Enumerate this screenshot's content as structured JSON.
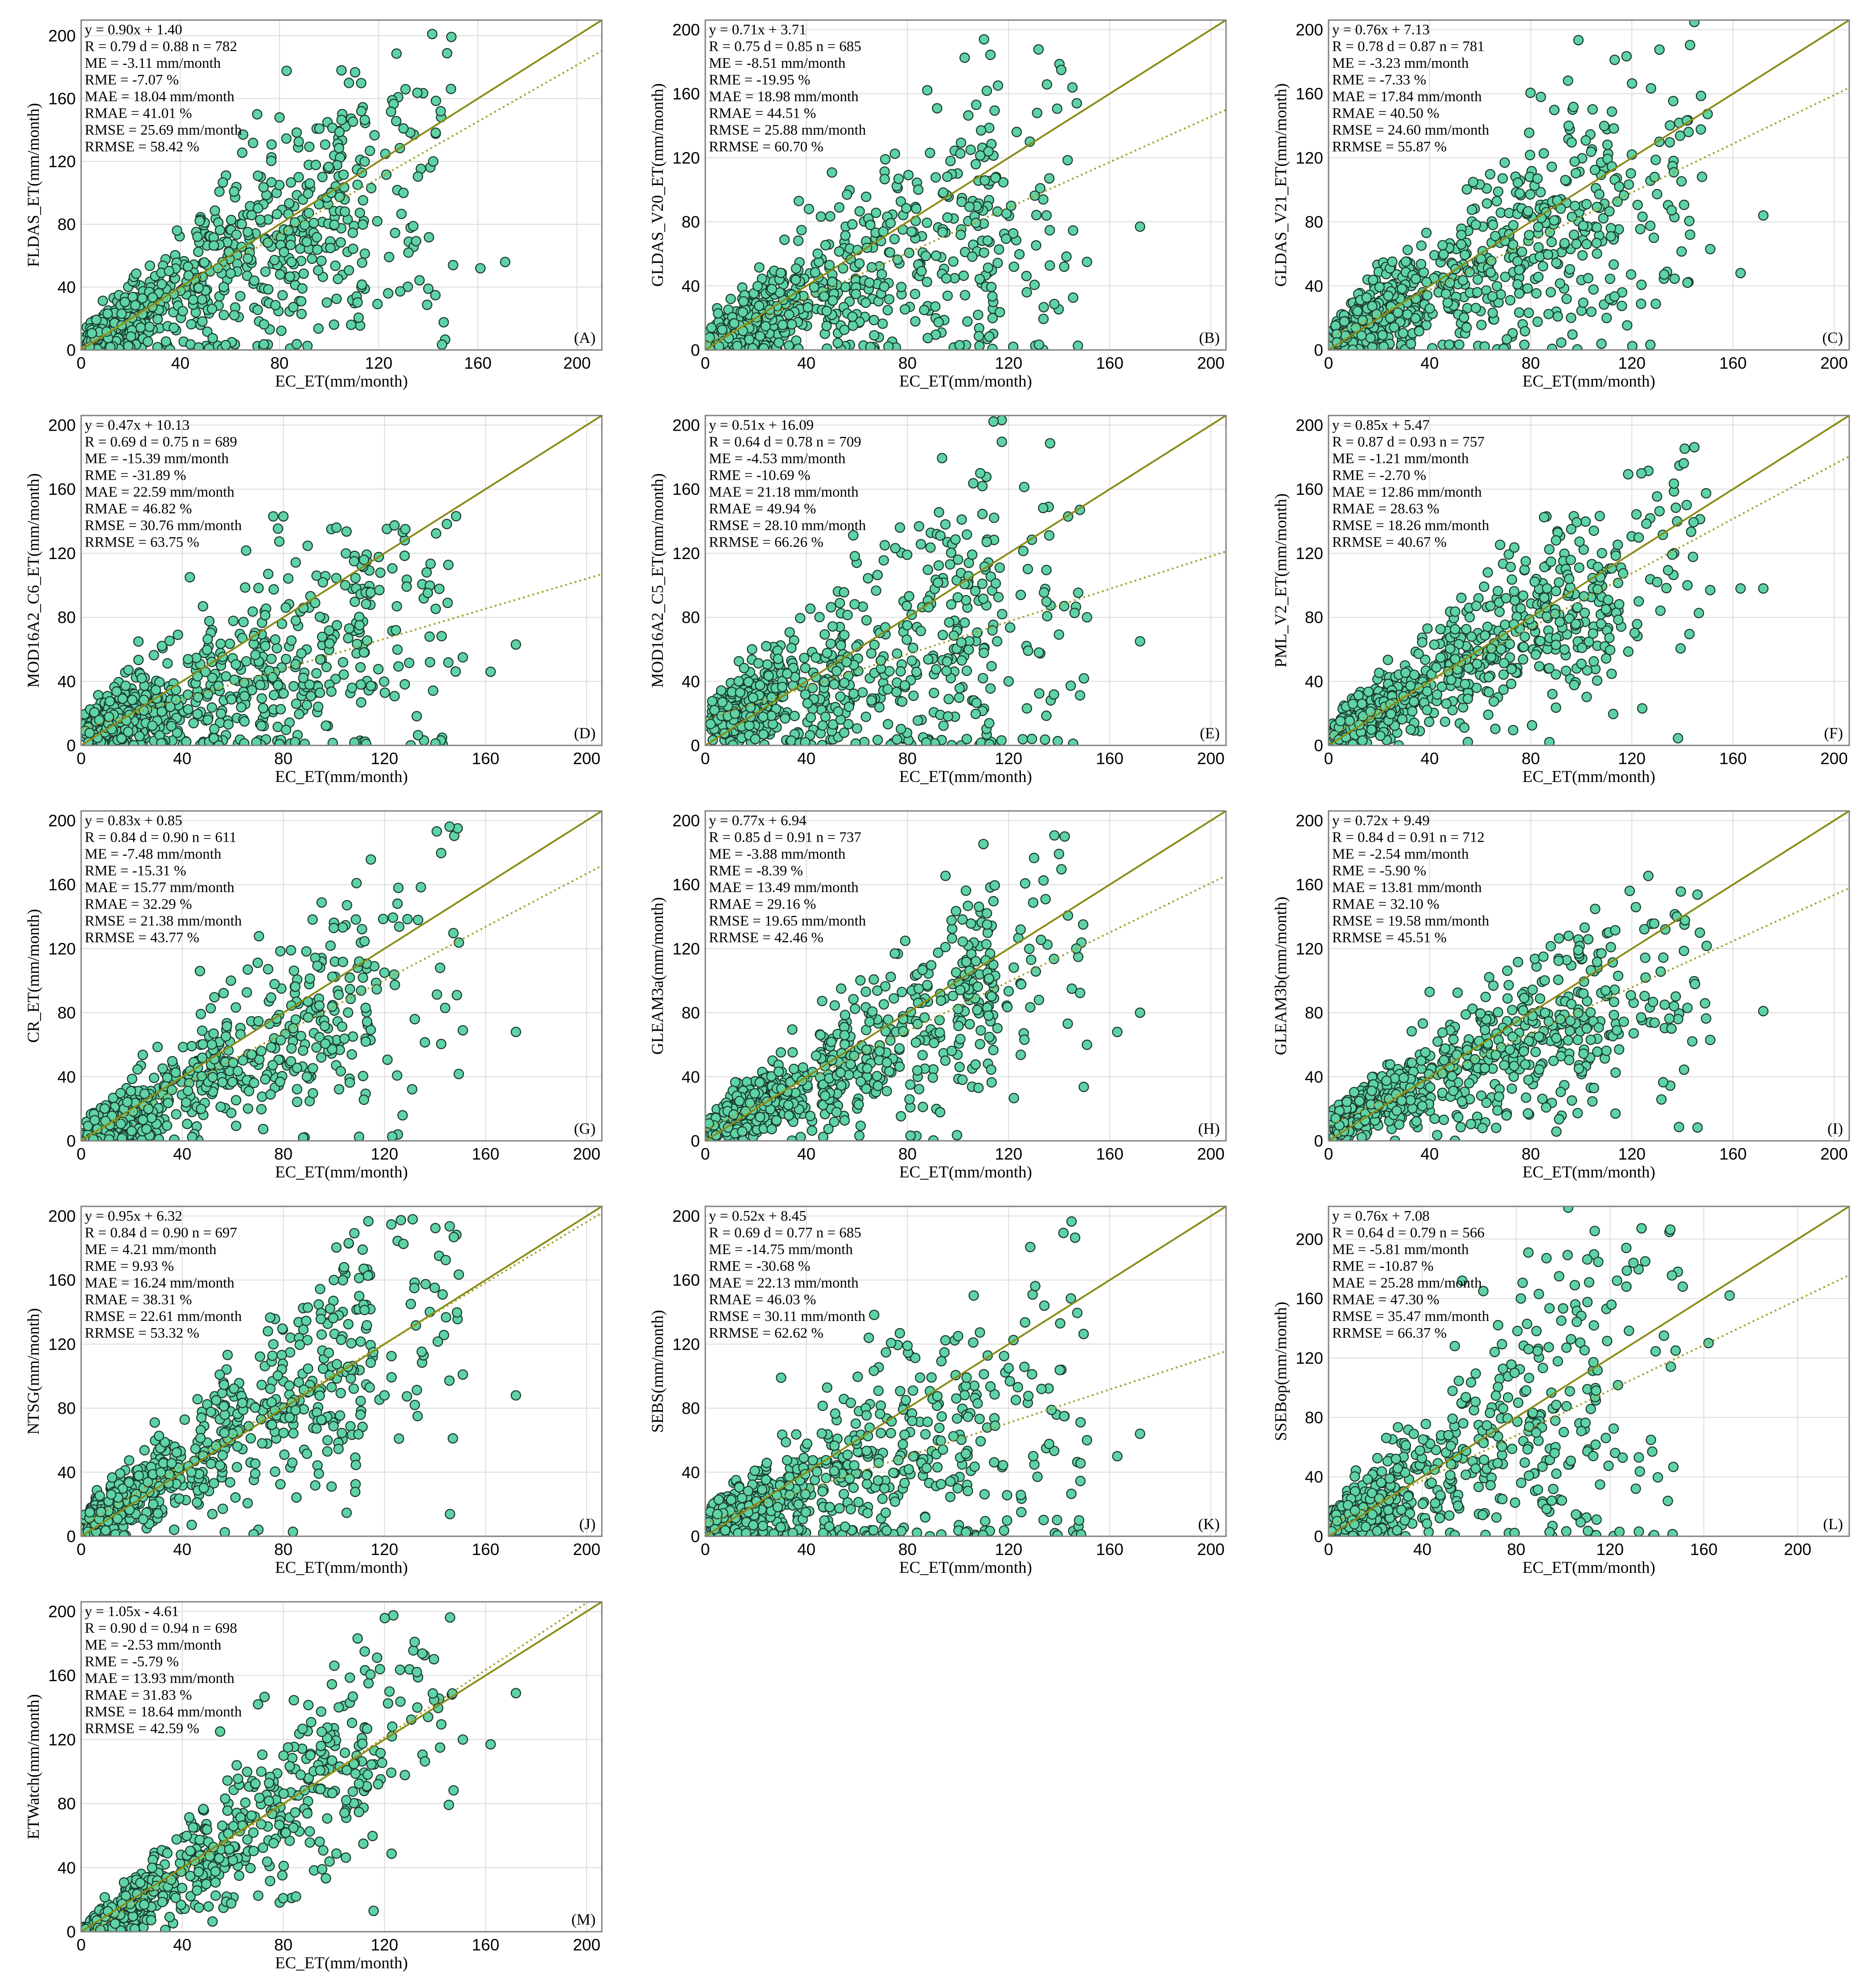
{
  "chart_data": [
    {
      "id": "A",
      "type": "scatter",
      "panel_label": "(A)",
      "xlabel": "EC_ET(mm/month)",
      "ylabel": "FLDAS_ET(mm/month)",
      "xlim": [
        0,
        210
      ],
      "ylim": [
        0,
        210
      ],
      "xticks": [
        0,
        40,
        80,
        120,
        160,
        200
      ],
      "yticks": [
        0,
        40,
        80,
        120,
        160,
        200
      ],
      "fit": {
        "slope": 0.9,
        "intercept": 1.4
      },
      "stats": [
        "y = 0.90x + 1.40",
        "R = 0.79  d = 0.88  n = 782",
        "ME = -3.11 mm/month",
        "RME = -7.07 %",
        "MAE = 18.04 mm/month",
        "RMAE = 41.01 %",
        "RMSE = 25.69 mm/month",
        "RRMSE = 58.42 %"
      ],
      "n": 782,
      "spread": 0.4,
      "highlights": [
        [
          105,
          178
        ],
        [
          108,
          170
        ],
        [
          113,
          152
        ],
        [
          130,
          141
        ],
        [
          145,
          152
        ],
        [
          142,
          120
        ],
        [
          150,
          54
        ],
        [
          161,
          52
        ],
        [
          171,
          56
        ],
        [
          140,
          39
        ],
        [
          130,
          100
        ],
        [
          117,
          103
        ],
        [
          132,
          62
        ],
        [
          80,
          148
        ],
        [
          71,
          150
        ]
      ]
    },
    {
      "id": "B",
      "type": "scatter",
      "panel_label": "(B)",
      "xlabel": "EC_ET(mm/month)",
      "ylabel": "GLDAS_V20_ET(mm/month)",
      "xlim": [
        0,
        206
      ],
      "ylim": [
        0,
        206
      ],
      "xticks": [
        0,
        40,
        80,
        120,
        160,
        200
      ],
      "yticks": [
        0,
        40,
        80,
        120,
        160,
        200
      ],
      "fit": {
        "slope": 0.71,
        "intercept": 3.71
      },
      "stats": [
        "y = 0.71x + 3.71",
        "R = 0.75  d = 0.85  n = 685",
        "ME = -8.51 mm/month",
        "RME = -19.95 %",
        "MAE = 18.98 mm/month",
        "RMAE = 44.51 %",
        "RMSE = 25.88 mm/month",
        "RRMSE = 60.70 %"
      ],
      "n": 685,
      "spread": 0.4,
      "highlights": [
        [
          172,
          77
        ],
        [
          151,
          55
        ],
        [
          142,
          52
        ],
        [
          135,
          84
        ],
        [
          121,
          90
        ],
        [
          105,
          125
        ],
        [
          107,
          116
        ],
        [
          97,
          118
        ],
        [
          41,
          88
        ],
        [
          37,
          93
        ],
        [
          53,
          89
        ]
      ]
    },
    {
      "id": "C",
      "type": "scatter",
      "panel_label": "(C)",
      "xlabel": "EC_ET(mm/month)",
      "ylabel": "GLDAS_V21_ET(mm/month)",
      "xlim": [
        0,
        206
      ],
      "ylim": [
        0,
        206
      ],
      "xticks": [
        0,
        40,
        80,
        120,
        160,
        200
      ],
      "yticks": [
        0,
        40,
        80,
        120,
        160,
        200
      ],
      "fit": {
        "slope": 0.76,
        "intercept": 7.13
      },
      "stats": [
        "y = 0.76x + 7.13",
        "R = 0.78  d = 0.87  n = 781",
        "ME = -3.23 mm/month",
        "RME = -7.33 %",
        "MAE = 17.84 mm/month",
        "RMAE = 40.50 %",
        "RMSE = 24.60 mm/month",
        "RRMSE = 55.87 %"
      ],
      "n": 781,
      "spread": 0.4,
      "highlights": [
        [
          172,
          84
        ],
        [
          163,
          48
        ],
        [
          151,
          63
        ],
        [
          142,
          42
        ],
        [
          129,
          108
        ],
        [
          115,
          102
        ],
        [
          84,
          158
        ],
        [
          95,
          140
        ],
        [
          120,
          122
        ]
      ]
    },
    {
      "id": "D",
      "type": "scatter",
      "panel_label": "(D)",
      "xlabel": "EC_ET(mm/month)",
      "ylabel": "MOD16A2_C6_ET(mm/month)",
      "xlim": [
        0,
        206
      ],
      "ylim": [
        0,
        206
      ],
      "xticks": [
        0,
        40,
        80,
        120,
        160,
        200
      ],
      "yticks": [
        0,
        40,
        80,
        120,
        160,
        200
      ],
      "fit": {
        "slope": 0.47,
        "intercept": 10.13
      },
      "stats": [
        "y = 0.47x + 10.13",
        "R = 0.69  d = 0.75  n = 689",
        "ME = -15.39 mm/month",
        "RME = -31.89 %",
        "MAE = 22.59 mm/month",
        "RMAE = 46.82 %",
        "RMSE = 30.76 mm/month",
        "RRMSE = 63.75 %"
      ],
      "n": 689,
      "spread": 0.4,
      "highlights": [
        [
          172,
          63
        ],
        [
          162,
          46
        ],
        [
          151,
          55
        ],
        [
          145,
          89
        ],
        [
          118,
          97
        ],
        [
          108,
          115
        ],
        [
          80,
          143
        ],
        [
          76,
          143
        ],
        [
          101,
          136
        ],
        [
          43,
          105
        ]
      ]
    },
    {
      "id": "E",
      "type": "scatter",
      "panel_label": "(E)",
      "xlabel": "EC_ET(mm/month)",
      "ylabel": "MOD16A2_C5_ET(mm/month)",
      "xlim": [
        0,
        206
      ],
      "ylim": [
        0,
        206
      ],
      "xticks": [
        0,
        40,
        80,
        120,
        160,
        200
      ],
      "yticks": [
        0,
        40,
        80,
        120,
        160,
        200
      ],
      "fit": {
        "slope": 0.51,
        "intercept": 16.09
      },
      "stats": [
        "y = 0.51x + 16.09",
        "R = 0.64  d = 0.78  n = 709",
        "ME = -4.53 mm/month",
        "RME = -10.69 %",
        "MAE = 21.18 mm/month",
        "RMAE = 49.94 %",
        "RMSE = 28.10 mm/month",
        "RRMSE = 66.26 %"
      ],
      "n": 709,
      "spread": 0.45,
      "highlights": [
        [
          172,
          65
        ],
        [
          151,
          80
        ],
        [
          142,
          87
        ],
        [
          132,
          58
        ],
        [
          120,
          40
        ],
        [
          95,
          138
        ],
        [
          77,
          136
        ],
        [
          93,
          131
        ],
        [
          100,
          116
        ],
        [
          71,
          125
        ]
      ]
    },
    {
      "id": "F",
      "type": "scatter",
      "panel_label": "(F)",
      "xlabel": "EC_ET(mm/month)",
      "ylabel": "PML_V2_ET(mm/month)",
      "xlim": [
        0,
        206
      ],
      "ylim": [
        0,
        206
      ],
      "xticks": [
        0,
        40,
        80,
        120,
        160,
        200
      ],
      "yticks": [
        0,
        40,
        80,
        120,
        160,
        200
      ],
      "fit": {
        "slope": 0.85,
        "intercept": 5.47
      },
      "stats": [
        "y = 0.85x + 5.47",
        "R = 0.87  d = 0.93  n = 757",
        "ME = -1.21 mm/month",
        "RME = -2.70 %",
        "MAE = 12.86 mm/month",
        "RMAE = 28.63 %",
        "RMSE = 18.26 mm/month",
        "RRMSE = 40.67 %"
      ],
      "n": 757,
      "spread": 0.27,
      "highlights": [
        [
          172,
          98
        ],
        [
          163,
          98
        ],
        [
          151,
          97
        ],
        [
          142,
          100
        ],
        [
          130,
          102
        ],
        [
          96,
          135
        ],
        [
          90,
          128
        ],
        [
          63,
          108
        ],
        [
          78,
          115
        ]
      ]
    },
    {
      "id": "G",
      "type": "scatter",
      "panel_label": "(G)",
      "xlabel": "EC_ET(mm/month)",
      "ylabel": "CR_ET(mm/month)",
      "xlim": [
        0,
        206
      ],
      "ylim": [
        0,
        206
      ],
      "xticks": [
        0,
        40,
        80,
        120,
        160,
        200
      ],
      "yticks": [
        0,
        40,
        80,
        120,
        160,
        200
      ],
      "fit": {
        "slope": 0.83,
        "intercept": 0.85
      },
      "stats": [
        "y = 0.83x + 0.85",
        "R = 0.84  d = 0.90  n = 611",
        "ME = -7.48 mm/month",
        "RME = -15.31 %",
        "MAE = 15.77 mm/month",
        "RMAE = 32.29 %",
        "RMSE = 21.38 mm/month",
        "RRMSE = 43.77 %"
      ],
      "n": 611,
      "spread": 0.32,
      "highlights": [
        [
          172,
          68
        ],
        [
          151,
          69
        ],
        [
          144,
          83
        ],
        [
          142,
          108
        ],
        [
          132,
          76
        ],
        [
          120,
          105
        ],
        [
          110,
          112
        ],
        [
          83,
          119
        ],
        [
          47,
          106
        ]
      ]
    },
    {
      "id": "H",
      "type": "scatter",
      "panel_label": "(H)",
      "xlabel": "EC_ET(mm/month)",
      "ylabel": "GLEAM3a(mm/month)",
      "xlim": [
        0,
        206
      ],
      "ylim": [
        0,
        206
      ],
      "xticks": [
        0,
        40,
        80,
        120,
        160,
        200
      ],
      "yticks": [
        0,
        40,
        80,
        120,
        160,
        200
      ],
      "fit": {
        "slope": 0.77,
        "intercept": 6.94
      },
      "stats": [
        "y = 0.77x + 6.94",
        "R = 0.85  d = 0.91  n = 737",
        "ME = -3.88 mm/month",
        "RME = -8.39 %",
        "MAE = 13.49 mm/month",
        "RMAE = 29.16 %",
        "RMSE = 19.65 mm/month",
        "RRMSE = 42.46 %"
      ],
      "n": 737,
      "spread": 0.3,
      "highlights": [
        [
          172,
          80
        ],
        [
          163,
          68
        ],
        [
          151,
          60
        ],
        [
          145,
          95
        ],
        [
          132,
          88
        ],
        [
          95,
          121
        ],
        [
          75,
          117
        ]
      ]
    },
    {
      "id": "I",
      "type": "scatter",
      "panel_label": "(I)",
      "xlabel": "EC_ET(mm/month)",
      "ylabel": "GLEAM3b(mm/month)",
      "xlim": [
        0,
        206
      ],
      "ylim": [
        0,
        206
      ],
      "xticks": [
        0,
        40,
        80,
        120,
        160,
        200
      ],
      "yticks": [
        0,
        40,
        80,
        120,
        160,
        200
      ],
      "fit": {
        "slope": 0.72,
        "intercept": 9.49
      },
      "stats": [
        "y = 0.72x + 9.49",
        "R = 0.84  d = 0.91  n = 712",
        "ME = -2.54 mm/month",
        "RME = -5.90 %",
        "MAE = 13.81 mm/month",
        "RMAE = 32.10 %",
        "RMSE = 19.58 mm/month",
        "RRMSE = 45.51 %"
      ],
      "n": 712,
      "spread": 0.28,
      "highlights": [
        [
          172,
          81
        ],
        [
          151,
          63
        ],
        [
          142,
          83
        ],
        [
          133,
          85
        ],
        [
          105,
          33
        ],
        [
          95,
          128
        ],
        [
          85,
          115
        ],
        [
          40,
          93
        ]
      ]
    },
    {
      "id": "J",
      "type": "scatter",
      "panel_label": "(J)",
      "xlabel": "EC_ET(mm/month)",
      "ylabel": "NTSG(mm/month)",
      "xlim": [
        0,
        206
      ],
      "ylim": [
        0,
        206
      ],
      "xticks": [
        0,
        40,
        80,
        120,
        160,
        200
      ],
      "yticks": [
        0,
        40,
        80,
        120,
        160,
        200
      ],
      "fit": {
        "slope": 0.95,
        "intercept": 6.32
      },
      "stats": [
        "y = 0.95x + 6.32",
        "R = 0.84  d = 0.90  n = 697",
        "ME = 4.21 mm/month",
        "RME = 9.93 %",
        "MAE = 16.24 mm/month",
        "RMAE = 38.31 %",
        "RMSE = 22.61 mm/month",
        "RRMSE = 53.32 %"
      ],
      "n": 697,
      "spread": 0.35,
      "highlights": [
        [
          172,
          88
        ],
        [
          151,
          101
        ],
        [
          143,
          151
        ],
        [
          132,
          82
        ],
        [
          120,
          88
        ],
        [
          104,
          168
        ],
        [
          110,
          150
        ],
        [
          100,
          160
        ]
      ]
    },
    {
      "id": "K",
      "type": "scatter",
      "panel_label": "(K)",
      "xlabel": "EC_ET(mm/month)",
      "ylabel": "SEBS(mm/month)",
      "xlim": [
        0,
        206
      ],
      "ylim": [
        0,
        206
      ],
      "xticks": [
        0,
        40,
        80,
        120,
        160,
        200
      ],
      "yticks": [
        0,
        40,
        80,
        120,
        160,
        200
      ],
      "fit": {
        "slope": 0.52,
        "intercept": 8.45
      },
      "stats": [
        "y = 0.52x + 8.45",
        "R = 0.69  d = 0.77  n = 685",
        "ME = -14.75 mm/month",
        "RME = -30.68 %",
        "MAE = 22.13 mm/month",
        "RMAE = 46.03 %",
        "RMSE = 30.11 mm/month",
        "RRMSE = 62.62 %"
      ],
      "n": 685,
      "spread": 0.45,
      "highlights": [
        [
          172,
          64
        ],
        [
          163,
          50
        ],
        [
          151,
          60
        ],
        [
          142,
          75
        ],
        [
          133,
          92
        ],
        [
          120,
          105
        ],
        [
          106,
          121
        ],
        [
          80,
          119
        ],
        [
          30,
          99
        ]
      ]
    },
    {
      "id": "L",
      "type": "scatter",
      "panel_label": "(L)",
      "xlabel": "EC_ET(mm/month)",
      "ylabel": "SSEBop(mm/month)",
      "xlim": [
        0,
        222
      ],
      "ylim": [
        0,
        222
      ],
      "xticks": [
        0,
        40,
        80,
        120,
        160,
        200
      ],
      "yticks": [
        0,
        40,
        80,
        120,
        160,
        200
      ],
      "fit": {
        "slope": 0.76,
        "intercept": 7.08
      },
      "stats": [
        "y = 0.76x + 7.08",
        "R = 0.64  d = 0.79  n = 566",
        "ME = -5.81 mm/month",
        "RME = -10.87 %",
        "MAE = 25.28 mm/month",
        "RMAE = 47.30 %",
        "RMSE = 35.47 mm/month",
        "RRMSE = 66.37 %"
      ],
      "n": 566,
      "spread": 0.55,
      "highlights": [
        [
          171,
          162
        ],
        [
          162,
          130
        ],
        [
          151,
          168
        ],
        [
          143,
          135
        ],
        [
          135,
          185
        ],
        [
          130,
          184
        ],
        [
          131,
          32
        ],
        [
          127,
          168
        ],
        [
          123,
          172
        ],
        [
          105,
          169
        ],
        [
          66,
          165
        ],
        [
          57,
          172
        ],
        [
          82,
          160
        ],
        [
          138,
          57
        ]
      ]
    },
    {
      "id": "M",
      "type": "scatter",
      "panel_label": "(M)",
      "xlabel": "EC_ET(mm/month)",
      "ylabel": "ETWatch(mm/month)",
      "xlim": [
        0,
        206
      ],
      "ylim": [
        0,
        206
      ],
      "xticks": [
        0,
        40,
        80,
        120,
        160,
        200
      ],
      "yticks": [
        0,
        40,
        80,
        120,
        160,
        200
      ],
      "fit": {
        "slope": 1.05,
        "intercept": -4.61
      },
      "stats": [
        "y = 1.05x - 4.61",
        "R = 0.90  d = 0.94  n = 698",
        "ME = -2.53 mm/month",
        "RME = -5.79 %",
        "MAE = 13.93 mm/month",
        "RMAE = 31.83 %",
        "RMSE = 18.64 mm/month",
        "RRMSE = 42.59 %"
      ],
      "n": 698,
      "spread": 0.25,
      "highlights": [
        [
          172,
          149
        ],
        [
          162,
          117
        ],
        [
          151,
          120
        ],
        [
          142,
          115
        ],
        [
          133,
          140
        ],
        [
          122,
          150
        ],
        [
          85,
          22
        ],
        [
          70,
          142
        ],
        [
          55,
          125
        ]
      ]
    }
  ]
}
